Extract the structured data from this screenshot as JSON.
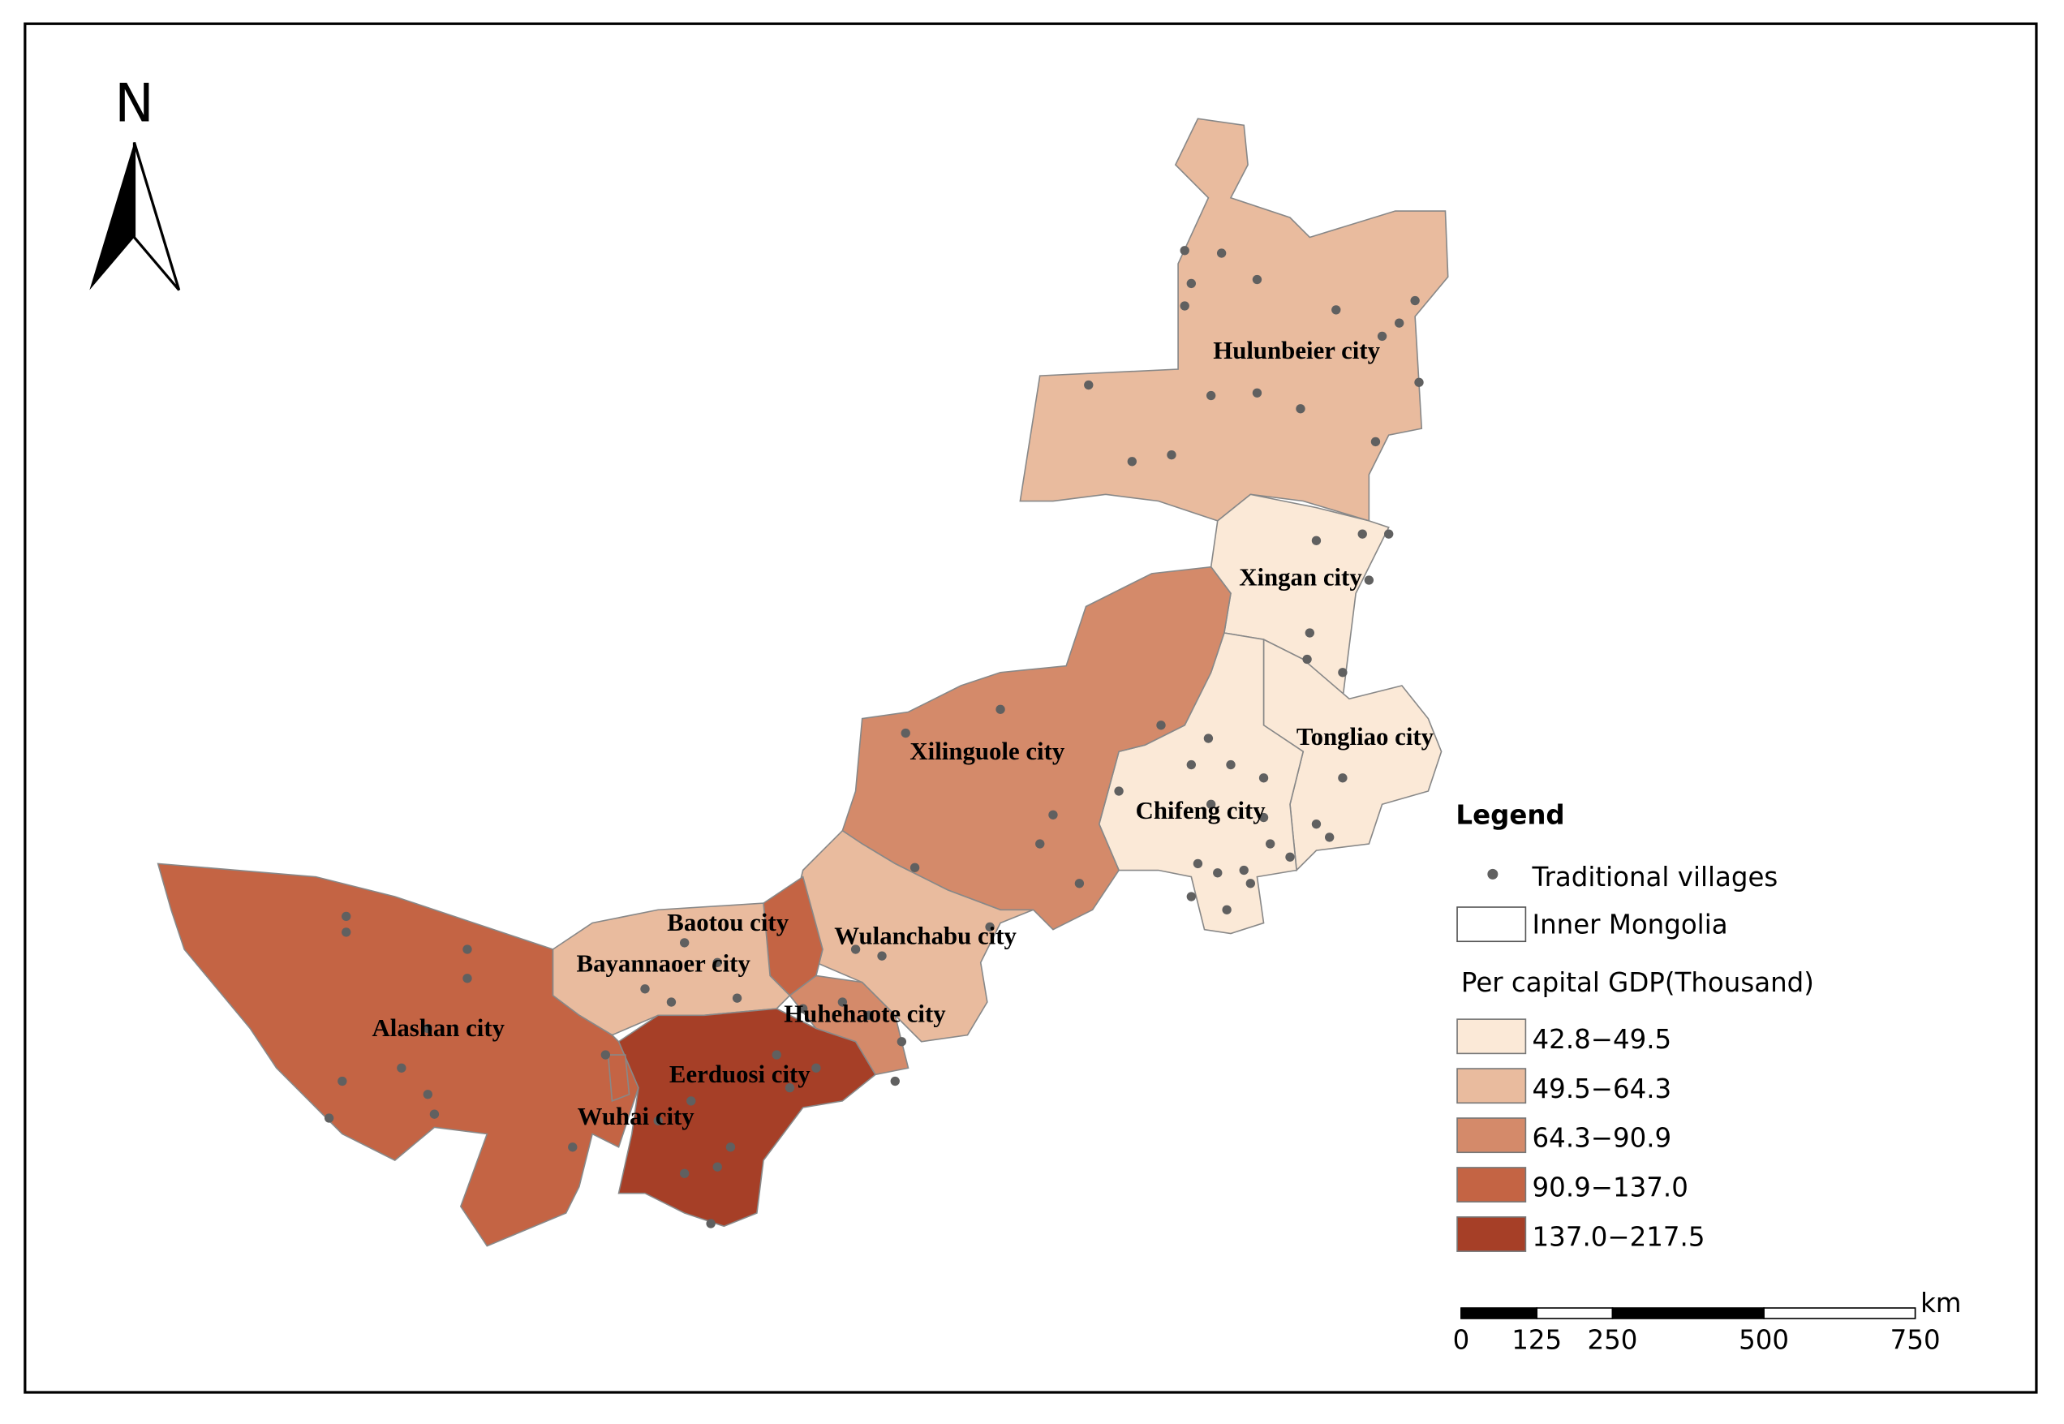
{
  "map": {
    "north": "N",
    "regions": [
      {
        "name": "Hulunbeier city",
        "color": "#e9bb9e"
      },
      {
        "name": "Xingan city",
        "color": "#fbe9d7"
      },
      {
        "name": "Tongliao city",
        "color": "#fbe9d7"
      },
      {
        "name": "Chifeng city",
        "color": "#fbe9d7"
      },
      {
        "name": "Xilinguole city",
        "color": "#d48a6a"
      },
      {
        "name": "Wulanchabu city",
        "color": "#e9bb9e"
      },
      {
        "name": "Baotou city",
        "color": "#c46444"
      },
      {
        "name": "Huhehaote city",
        "color": "#d48a6a"
      },
      {
        "name": "Bayannaoer city",
        "color": "#e9bb9e"
      },
      {
        "name": "Eerduosi city",
        "color": "#a63f27"
      },
      {
        "name": "Alashan city",
        "color": "#c46444"
      },
      {
        "name": "Wuhai city",
        "color": "#c46444"
      }
    ],
    "legend": {
      "title": "Legend",
      "points": "Traditional villages",
      "boundary": "Inner Mongolia",
      "gdp_title": "Per capital GDP(Thousand)",
      "classes": [
        {
          "label": "42.8−49.5",
          "color": "#fbe9d7"
        },
        {
          "label": "49.5−64.3",
          "color": "#e9bb9e"
        },
        {
          "label": "64.3−90.9",
          "color": "#d48a6a"
        },
        {
          "label": "90.9−137.0",
          "color": "#c46444"
        },
        {
          "label": "137.0−217.5",
          "color": "#a63f27"
        }
      ]
    },
    "scale_bar": {
      "unit": "km",
      "ticks": [
        0,
        125,
        250,
        500,
        750
      ]
    }
  }
}
